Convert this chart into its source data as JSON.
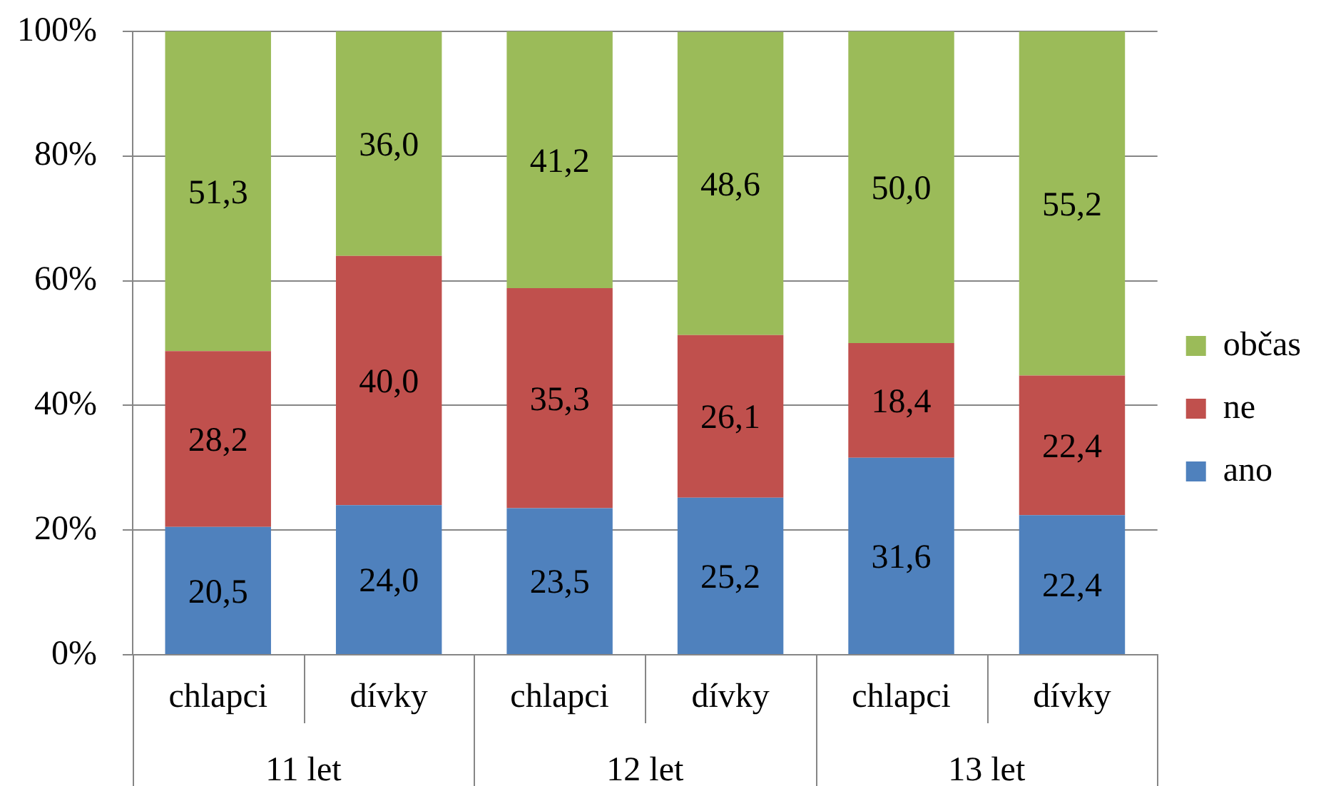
{
  "chart_data": {
    "type": "bar",
    "stacked": true,
    "categories": [
      "chlapci",
      "dívky",
      "chlapci",
      "dívky",
      "chlapci",
      "dívky"
    ],
    "series": [
      {
        "name": "ano",
        "color": "#4f81bd",
        "values": [
          20.5,
          24.0,
          23.5,
          25.2,
          31.6,
          22.4
        ],
        "value_labels": [
          "20,5",
          "24,0",
          "23,5",
          "25,2",
          "31,6",
          "22,4"
        ]
      },
      {
        "name": "ne",
        "color": "#c0504d",
        "values": [
          28.2,
          40.0,
          35.3,
          26.1,
          18.4,
          22.4
        ],
        "value_labels": [
          "28,2",
          "40,0",
          "35,3",
          "26,1",
          "18,4",
          "22,4"
        ]
      },
      {
        "name": "občas",
        "color": "#9bbb59",
        "values": [
          51.3,
          36.0,
          41.2,
          48.6,
          50.0,
          55.2
        ],
        "value_labels": [
          "51,3",
          "36,0",
          "41,2",
          "48,6",
          "50,0",
          "55,2"
        ]
      }
    ],
    "ylim": [
      0,
      100
    ],
    "yticks": [
      {
        "value": 0,
        "label": "0%"
      },
      {
        "value": 20,
        "label": "20%"
      },
      {
        "value": 40,
        "label": "40%"
      },
      {
        "value": 60,
        "label": "60%"
      },
      {
        "value": 80,
        "label": "80%"
      },
      {
        "value": 100,
        "label": "100%"
      }
    ],
    "grid": "y",
    "legend": "right",
    "annotations": [
      "11 let",
      "12 let",
      "13 let"
    ]
  }
}
